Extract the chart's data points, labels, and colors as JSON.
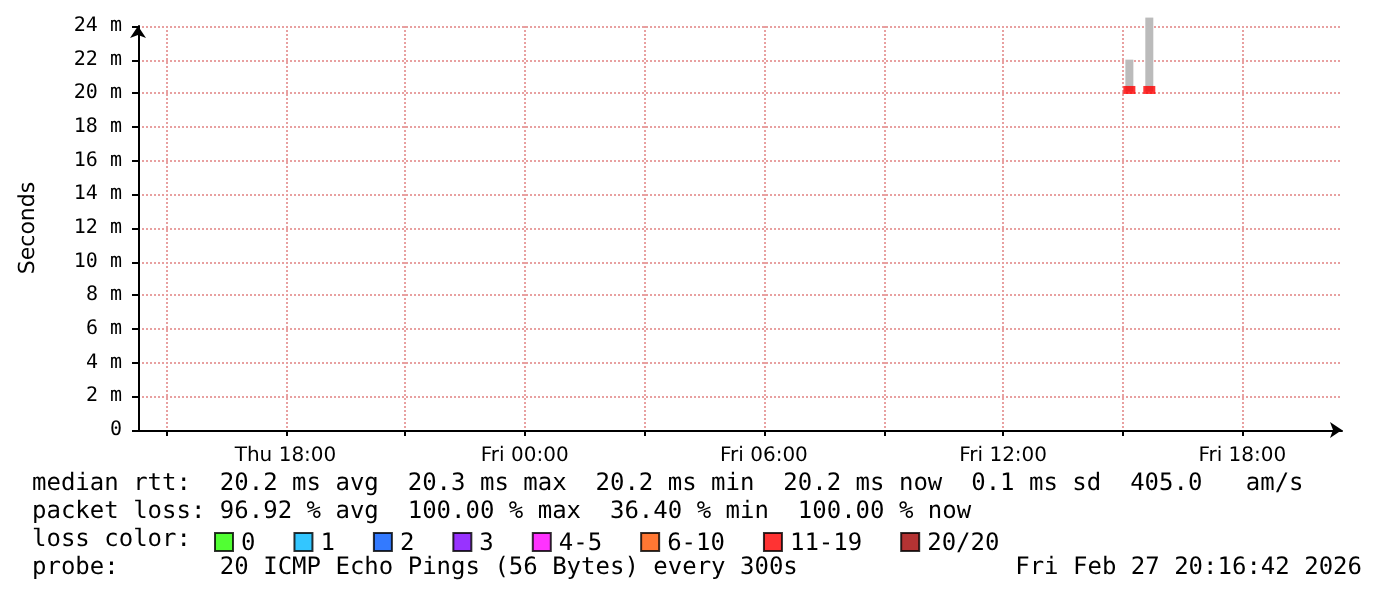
{
  "chart_data": {
    "type": "scatter",
    "ylabel": "Seconds",
    "xlim": [
      "2026-02-26T14:18",
      "2026-02-27T20:30"
    ],
    "xticks": [
      {
        "value": "2026-02-26T15:00",
        "label": null
      },
      {
        "value": "2026-02-26T18:00",
        "label": "Thu 18:00"
      },
      {
        "value": "2026-02-26T21:00",
        "label": null
      },
      {
        "value": "2026-02-27T00:00",
        "label": "Fri 00:00"
      },
      {
        "value": "2026-02-27T03:00",
        "label": null
      },
      {
        "value": "2026-02-27T06:00",
        "label": "Fri 06:00"
      },
      {
        "value": "2026-02-27T09:00",
        "label": null
      },
      {
        "value": "2026-02-27T12:00",
        "label": "Fri 12:00"
      },
      {
        "value": "2026-02-27T15:00",
        "label": null
      },
      {
        "value": "2026-02-27T18:00",
        "label": "Fri 18:00"
      }
    ],
    "ylim": [
      0,
      24
    ],
    "yticks": [
      0,
      {
        "value": 2,
        "label": "2 m"
      },
      {
        "value": 4,
        "label": "4 m"
      },
      {
        "value": 6,
        "label": "6 m"
      },
      {
        "value": 8,
        "label": "8 m"
      },
      {
        "value": 10,
        "label": "10 m"
      },
      {
        "value": 12,
        "label": "12 m"
      },
      {
        "value": 14,
        "label": "14 m"
      },
      {
        "value": 16,
        "label": "16 m"
      },
      {
        "value": 18,
        "label": "18 m"
      },
      {
        "value": 20,
        "label": "20 m"
      },
      {
        "value": 22,
        "label": "22 m"
      },
      {
        "value": 24,
        "label": "24 m"
      }
    ],
    "grid": true,
    "legend": "bottom left",
    "marker": "square",
    "series": [
      {
        "type": "bar",
        "color": "#bbbbbb",
        "x": [
          "2026-02-27T15:10",
          "2026-02-27T15:40"
        ],
        "base": [
          20.1,
          20.1
        ],
        "values": [
          1.9,
          4.4
        ]
      },
      {
        "name": "0",
        "color": "#26ff00"
      },
      {
        "name": "1",
        "color": "#00b8ff"
      },
      {
        "name": "2",
        "color": "#0059ff"
      },
      {
        "name": "3",
        "color": "#7e00ff"
      },
      {
        "name": "4-5",
        "color": "#ff00ff"
      },
      {
        "name": "6-10",
        "color": "#ff5500"
      },
      {
        "name": "11-19",
        "color": "#ff0000",
        "x": [
          "2026-02-27T15:10",
          "2026-02-27T15:40"
        ],
        "values": [
          20.2,
          20.2
        ]
      },
      {
        "name": "20/20",
        "color": "#a10000"
      }
    ],
    "annotations": [
      "median rtt:  20.2 ms avg  20.3 ms max  20.2 ms min  20.2 ms now  0.1 ms sd  405.0   am/s",
      "packet loss: 96.92 % avg  100.00 % max  36.40 % min  100.00 % now",
      "loss color:",
      "probe:       20 ICMP Echo Pings (56 Bytes) every 300s",
      "Fri Feb 27 20:16:42 2026"
    ]
  }
}
